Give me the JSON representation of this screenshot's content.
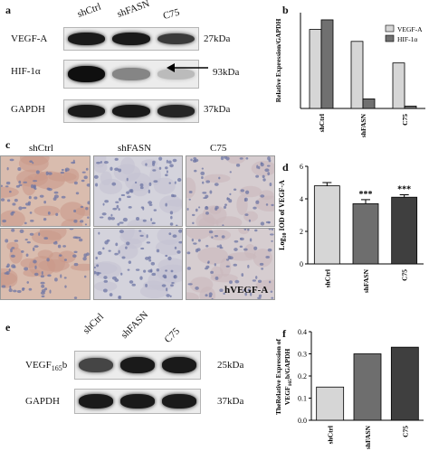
{
  "panel_a": {
    "label": "a",
    "lanes": [
      "shCtrl",
      "shFASN",
      "C75"
    ],
    "rows": [
      {
        "protein": "VEGF-A",
        "kda": "27kDa",
        "intensity": [
          0.95,
          0.95,
          0.8
        ]
      },
      {
        "protein": "HIF-1α",
        "kda": "93kDa",
        "intensity": [
          1.0,
          0.45,
          0.2
        ]
      },
      {
        "protein": "GAPDH",
        "kda": "37kDa",
        "intensity": [
          0.95,
          0.95,
          0.9
        ]
      }
    ]
  },
  "panel_c": {
    "label": "c",
    "lanes": [
      "shCtrl",
      "shFASN",
      "C75"
    ],
    "stain_label": "hVEGF-A"
  },
  "panel_e": {
    "label": "e",
    "lanes": [
      "shCtrl",
      "shFASN",
      "C75"
    ],
    "rows": [
      {
        "protein": "VEGF",
        "protein_sub": "165",
        "protein_suffix": "b",
        "kda": "25kDa",
        "intensity": [
          0.75,
          0.95,
          0.95
        ]
      },
      {
        "protein": "GAPDH",
        "protein_sub": "",
        "protein_suffix": "",
        "kda": "37kDa",
        "intensity": [
          0.95,
          0.95,
          0.95
        ]
      }
    ]
  },
  "chart_data": [
    {
      "panel": "b",
      "type": "bar",
      "categories": [
        "shCtrl",
        "shFASN",
        "C75"
      ],
      "series": [
        {
          "name": "VEGF-A",
          "values": [
            0.66,
            0.56,
            0.38
          ],
          "color": "#d6d6d6"
        },
        {
          "name": "HIF-1α",
          "values": [
            0.74,
            0.08,
            0.02
          ],
          "color": "#707070"
        }
      ],
      "ylabel": "Relative Expression/GAPDH",
      "ylim": [
        0,
        0.8
      ],
      "legend": "top-right",
      "grid": false
    },
    {
      "panel": "d",
      "type": "bar",
      "categories": [
        "shCtrl",
        "shFASN",
        "C75"
      ],
      "values": [
        4.8,
        3.7,
        4.1
      ],
      "errors": [
        0.2,
        0.25,
        0.15
      ],
      "significance": [
        "",
        "***",
        "***"
      ],
      "colors": [
        "#d6d6d6",
        "#6e6e6e",
        "#3f3f3f"
      ],
      "ylabel": "Log10 IOD of VEGF-A",
      "ylabel_main": "Log",
      "ylabel_sub": "10",
      "ylabel_rest": " IOD of VEGF-A",
      "ylim": [
        0,
        6
      ],
      "yticks": [
        0,
        2,
        4,
        6
      ],
      "grid": false
    },
    {
      "panel": "f",
      "type": "bar",
      "categories": [
        "shCtrl",
        "shFASN",
        "C75"
      ],
      "values": [
        0.15,
        0.3,
        0.33
      ],
      "colors": [
        "#d6d6d6",
        "#6e6e6e",
        "#3f3f3f"
      ],
      "ylabel_line1": "TheRelative Expression of",
      "ylabel_line2_main": "VEGF",
      "ylabel_line2_sub": "165",
      "ylabel_line2_rest": "b/GAPDH",
      "ylim": [
        0,
        0.4
      ],
      "yticks": [
        0.0,
        0.1,
        0.2,
        0.3,
        0.4
      ],
      "grid": false
    }
  ]
}
